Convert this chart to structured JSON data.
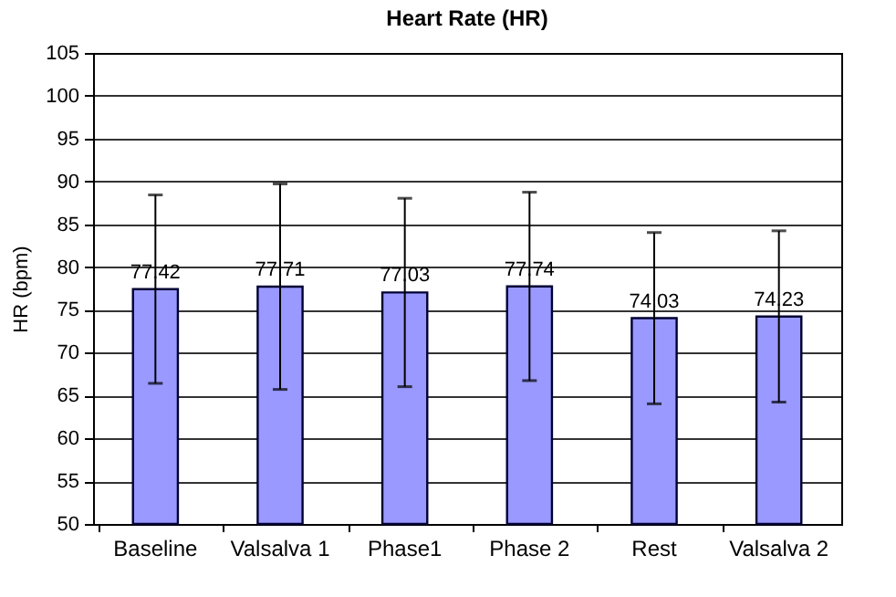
{
  "chart_data": {
    "type": "bar",
    "title": "Heart Rate (HR)",
    "ylabel": "HR (bpm)",
    "categories": [
      "Baseline",
      "Valsalva 1",
      "Phase1",
      "Phase 2",
      "Rest",
      "Valsalva 2"
    ],
    "values": [
      77.42,
      77.71,
      77.03,
      77.74,
      74.03,
      74.23
    ],
    "errors": [
      11,
      12,
      11,
      11,
      10,
      10
    ],
    "color": "#9999ff",
    "data_labels": true,
    "ylim": [
      50,
      105
    ],
    "yticks": [
      50,
      55,
      60,
      65,
      70,
      75,
      80,
      85,
      90,
      95,
      100,
      105
    ],
    "grid": "y"
  }
}
